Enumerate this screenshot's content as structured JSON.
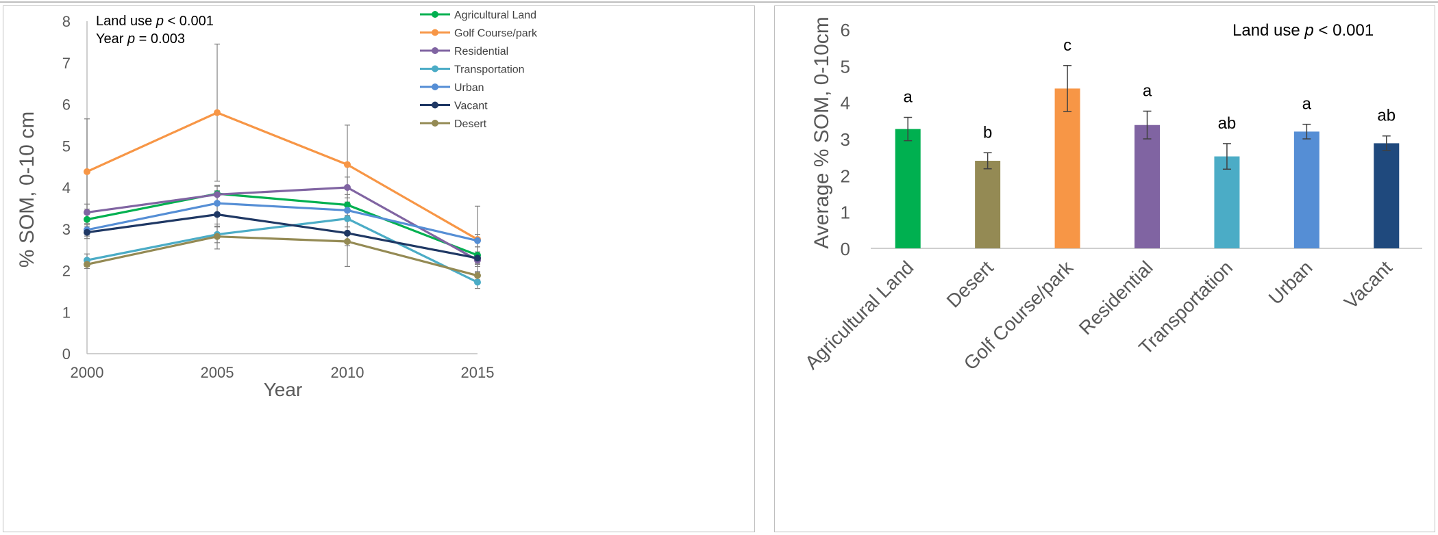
{
  "chart_data": [
    {
      "type": "line",
      "annotation_land_use": "Land use ",
      "annotation_year": "Year ",
      "annotation_p": "p",
      "annotation_land_use_value": " < 0.001",
      "annotation_year_value": " = 0.003",
      "xlabel": "Year",
      "ylabel": "% SOM, 0-10 cm",
      "x": [
        2000,
        2005,
        2010,
        2015
      ],
      "x_tick_labels": [
        "2000",
        "2005",
        "2010",
        "2015"
      ],
      "ylim": [
        0,
        8
      ],
      "y_tick_labels": [
        "0",
        "1",
        "2",
        "3",
        "4",
        "5",
        "6",
        "7",
        "8"
      ],
      "legend_position": "top-right",
      "series": [
        {
          "name": "Agricultural Land",
          "color": "#00b050",
          "values": [
            3.23,
            3.85,
            3.58,
            2.37
          ],
          "err": [
            0.25,
            0.2,
            0.25,
            0.2
          ]
        },
        {
          "name": "Golf Course/park",
          "color": "#f79646",
          "values": [
            4.38,
            5.8,
            4.55,
            2.75
          ],
          "err": [
            1.27,
            1.65,
            0.95,
            0.8
          ]
        },
        {
          "name": "Residential",
          "color": "#8064a2",
          "values": [
            3.4,
            3.83,
            4.0,
            2.25
          ],
          "err": [
            0.2,
            0.2,
            0.25,
            0.15
          ]
        },
        {
          "name": "Transportation",
          "color": "#4bacc6",
          "values": [
            2.25,
            2.87,
            3.25,
            1.72
          ],
          "err": [
            0.15,
            0.2,
            0.2,
            0.15
          ]
        },
        {
          "name": "Urban",
          "color": "#558ed5",
          "values": [
            2.98,
            3.62,
            3.45,
            2.72
          ],
          "err": [
            0.15,
            0.3,
            0.2,
            0.15
          ]
        },
        {
          "name": "Vacant",
          "color": "#1f3864",
          "values": [
            2.92,
            3.35,
            2.9,
            2.3
          ],
          "err": [
            0.15,
            0.3,
            0.3,
            0.15
          ]
        },
        {
          "name": "Desert",
          "color": "#948a54",
          "values": [
            2.15,
            2.82,
            2.7,
            1.88
          ],
          "err": [
            0.1,
            0.3,
            0.6,
            0.1
          ]
        }
      ]
    },
    {
      "type": "bar",
      "annotation_land_use": "Land use ",
      "annotation_p": "p",
      "annotation_land_use_value": " < 0.001",
      "ylabel": "Average % SOM, 0-10cm",
      "ylim": [
        0,
        6
      ],
      "y_tick_labels": [
        "0",
        "1",
        "2",
        "3",
        "4",
        "5",
        "6"
      ],
      "categories": [
        "Agricultural Land",
        "Desert",
        "Golf Course/park",
        "Residential",
        "Transportation",
        "Urban",
        "Vacant"
      ],
      "values": [
        3.27,
        2.4,
        4.38,
        3.38,
        2.52,
        3.2,
        2.88
      ],
      "err": [
        0.32,
        0.22,
        0.63,
        0.38,
        0.35,
        0.2,
        0.2
      ],
      "colors": [
        "#00b050",
        "#948a54",
        "#f79646",
        "#8064a2",
        "#4bacc6",
        "#558ed5",
        "#1f497d"
      ],
      "letters": [
        "a",
        "b",
        "c",
        "a",
        "ab",
        "a",
        "ab"
      ]
    }
  ]
}
